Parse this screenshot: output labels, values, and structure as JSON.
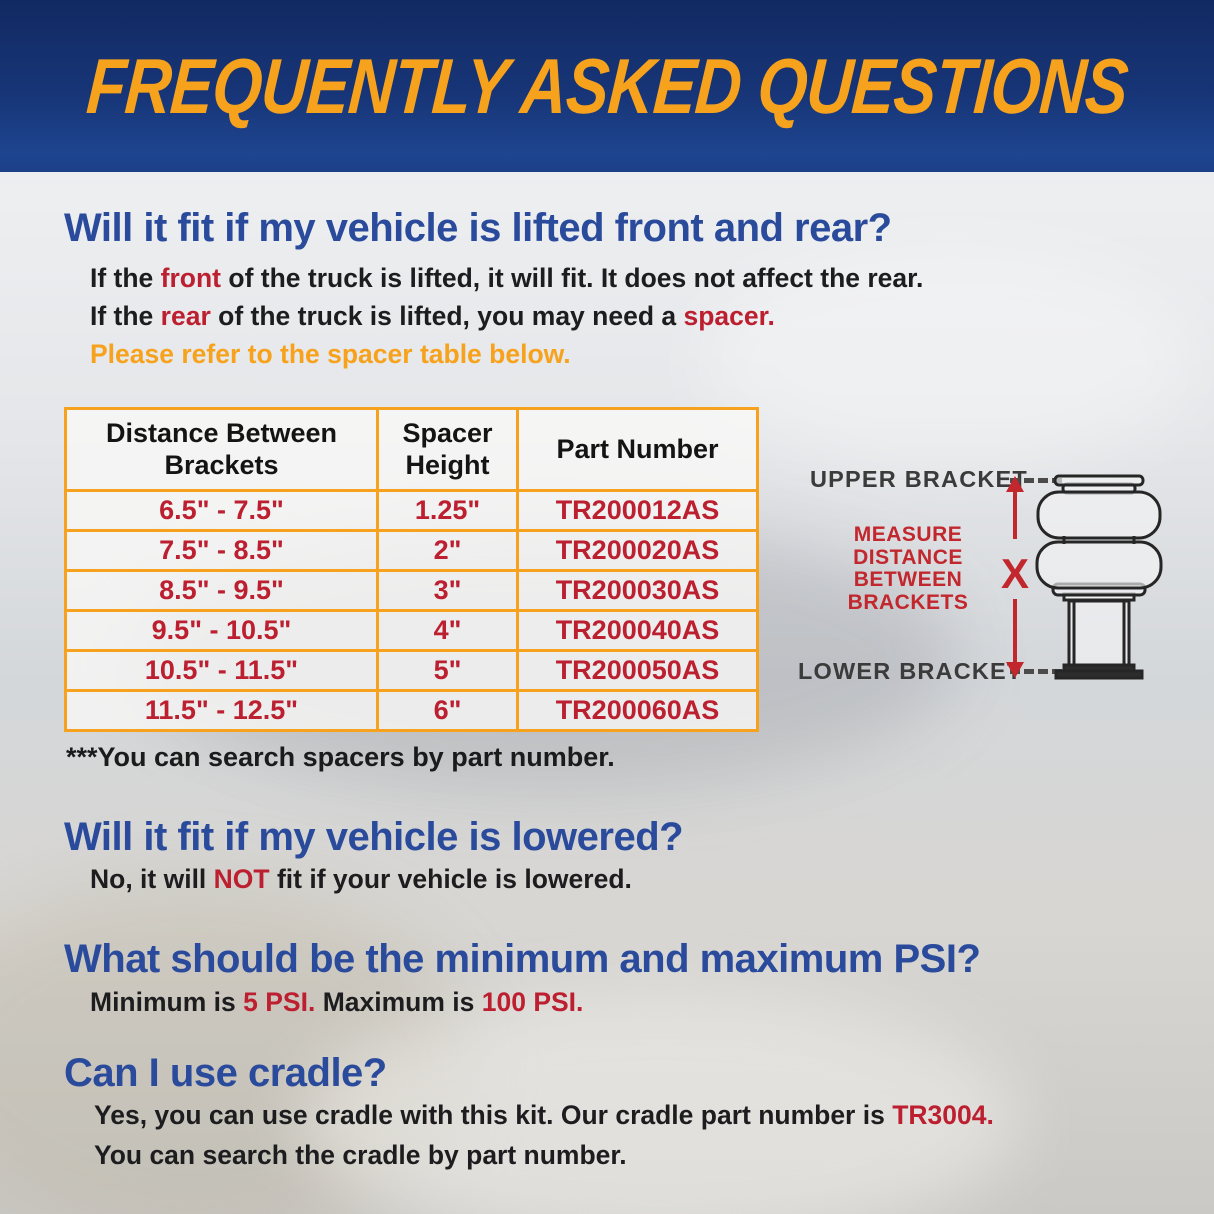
{
  "banner": {
    "title": "FREQUENTLY ASKED QUESTIONS"
  },
  "questions": {
    "q1": {
      "heading": "Will it fit if my vehicle is lifted front and rear?",
      "lines": [
        [
          {
            "text": "If the ",
            "color": "black"
          },
          {
            "text": "front",
            "color": "red"
          },
          {
            "text": " of the truck is lifted, it will fit. It does not affect the rear.",
            "color": "black"
          }
        ],
        [
          {
            "text": "If the ",
            "color": "black"
          },
          {
            "text": "rear",
            "color": "red"
          },
          {
            "text": " of the truck is lifted, you may need a ",
            "color": "black"
          },
          {
            "text": "spacer.",
            "color": "red"
          }
        ],
        [
          {
            "text": "Please refer to the spacer table below.",
            "color": "orange"
          }
        ]
      ]
    },
    "q2": {
      "heading": "Will it fit if my vehicle is lowered?",
      "lines": [
        [
          {
            "text": "No, it will ",
            "color": "black"
          },
          {
            "text": "NOT",
            "color": "red"
          },
          {
            "text": " fit if your vehicle is lowered.",
            "color": "black"
          }
        ]
      ]
    },
    "q3": {
      "heading": "What should be the minimum and maximum PSI?",
      "lines": [
        [
          {
            "text": "Minimum is ",
            "color": "black"
          },
          {
            "text": "5 PSI.",
            "color": "red"
          },
          {
            "text": " Maximum is ",
            "color": "black"
          },
          {
            "text": "100 PSI.",
            "color": "red"
          }
        ]
      ]
    },
    "q4": {
      "heading": "Can I use cradle?",
      "lines": [
        [
          {
            "text": "Yes, you can use cradle with this kit. Our cradle part number is ",
            "color": "black"
          },
          {
            "text": "TR3004.",
            "color": "red"
          }
        ],
        [
          {
            "text": "You can search the cradle by part number.",
            "color": "black"
          }
        ]
      ]
    }
  },
  "spacer_table": {
    "headers": [
      "Distance Between Brackets",
      "Spacer Height",
      "Part Number"
    ],
    "rows": [
      [
        "6.5\" - 7.5\"",
        "1.25\"",
        "TR200012AS"
      ],
      [
        "7.5\" - 8.5\"",
        "2\"",
        "TR200020AS"
      ],
      [
        "8.5\" - 9.5\"",
        "3\"",
        "TR200030AS"
      ],
      [
        "9.5\" - 10.5\"",
        "4\"",
        "TR200040AS"
      ],
      [
        "10.5\" - 11.5\"",
        "5\"",
        "TR200050AS"
      ],
      [
        "11.5\" - 12.5\"",
        "6\"",
        "TR200060AS"
      ]
    ],
    "footnote": "***You can search spacers by part number."
  },
  "diagram": {
    "upper_bracket_label": "UPPER BRACKET",
    "lower_bracket_label": "LOWER BRACKET",
    "measure_text_lines": [
      "MEASURE",
      "DISTANCE",
      "BETWEEN",
      "BRACKETS"
    ],
    "x_label": "X"
  },
  "colors": {
    "banner_navy": "#173577",
    "accent_orange": "#f7a21c",
    "heading_blue": "#2a4a9c",
    "highlight_red": "#bc2030",
    "diagram_red": "#c1272d",
    "table_border_orange": "#f6a21e",
    "text_black": "#1d1d1f",
    "bracket_label_gray": "#3b3b3b"
  }
}
